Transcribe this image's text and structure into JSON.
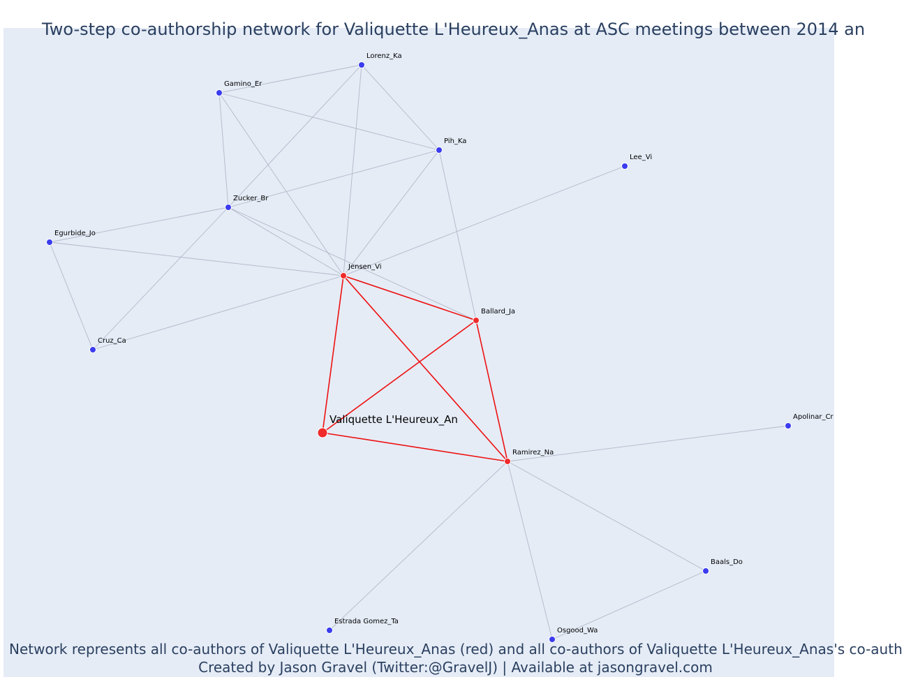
{
  "title": "Two-step co-authorship network for Valiquette L'Heureux_Anas at ASC meetings between 2014 an",
  "caption": {
    "line1": "Network represents all co-authors of Valiquette L'Heureux_Anas (red) and all co-authors of Valiquette L'Heureux_Anas's co-auth",
    "line2": "Created by Jason Gravel (Twitter:@GravelJ) | Available at jasongravel.com"
  },
  "colors": {
    "background": "#e5ecf6",
    "text": "#2a3f5f",
    "primary_node": "#ef2b2b",
    "secondary_node": "#3b3bef",
    "primary_edge": "#ee1111",
    "secondary_edge": "#b3b8c8"
  },
  "nodes": [
    {
      "id": "valiquette",
      "label": "Valiquette L'Heureux_An",
      "group": "focal"
    },
    {
      "id": "jensen",
      "label": "Jensen_Vi",
      "group": "primary"
    },
    {
      "id": "ballard",
      "label": "Ballard_Ja",
      "group": "primary"
    },
    {
      "id": "ramirez",
      "label": "Ramirez_Na",
      "group": "primary"
    },
    {
      "id": "lorenz",
      "label": "Lorenz_Ka",
      "group": "secondary"
    },
    {
      "id": "gamino",
      "label": "Gamino_Er",
      "group": "secondary"
    },
    {
      "id": "pih",
      "label": "Pih_Ka",
      "group": "secondary"
    },
    {
      "id": "lee",
      "label": "Lee_Vi",
      "group": "secondary"
    },
    {
      "id": "zucker",
      "label": "Zucker_Br",
      "group": "secondary"
    },
    {
      "id": "egurbide",
      "label": "Egurbide_Jo",
      "group": "secondary"
    },
    {
      "id": "cruz",
      "label": "Cruz_Ca",
      "group": "secondary"
    },
    {
      "id": "apolinar",
      "label": "Apolinar_Cr",
      "group": "secondary"
    },
    {
      "id": "baals",
      "label": "Baals_Do",
      "group": "secondary"
    },
    {
      "id": "estrada",
      "label": "Estrada Gomez_Ta",
      "group": "secondary"
    },
    {
      "id": "osgood",
      "label": "Osgood_Wa",
      "group": "secondary"
    }
  ],
  "edges": [
    {
      "source": "valiquette",
      "target": "jensen",
      "type": "primary"
    },
    {
      "source": "valiquette",
      "target": "ballard",
      "type": "primary"
    },
    {
      "source": "valiquette",
      "target": "ramirez",
      "type": "primary"
    },
    {
      "source": "jensen",
      "target": "ballard",
      "type": "primary"
    },
    {
      "source": "jensen",
      "target": "ramirez",
      "type": "primary"
    },
    {
      "source": "ballard",
      "target": "ramirez",
      "type": "primary"
    },
    {
      "source": "gamino",
      "target": "lorenz",
      "type": "secondary"
    },
    {
      "source": "gamino",
      "target": "pih",
      "type": "secondary"
    },
    {
      "source": "gamino",
      "target": "zucker",
      "type": "secondary"
    },
    {
      "source": "gamino",
      "target": "jensen",
      "type": "secondary"
    },
    {
      "source": "lorenz",
      "target": "pih",
      "type": "secondary"
    },
    {
      "source": "lorenz",
      "target": "zucker",
      "type": "secondary"
    },
    {
      "source": "lorenz",
      "target": "jensen",
      "type": "secondary"
    },
    {
      "source": "pih",
      "target": "zucker",
      "type": "secondary"
    },
    {
      "source": "pih",
      "target": "jensen",
      "type": "secondary"
    },
    {
      "source": "pih",
      "target": "ballard",
      "type": "secondary"
    },
    {
      "source": "lee",
      "target": "jensen",
      "type": "secondary"
    },
    {
      "source": "zucker",
      "target": "egurbide",
      "type": "secondary"
    },
    {
      "source": "zucker",
      "target": "jensen",
      "type": "secondary"
    },
    {
      "source": "zucker",
      "target": "ballard",
      "type": "secondary"
    },
    {
      "source": "zucker",
      "target": "cruz",
      "type": "secondary"
    },
    {
      "source": "egurbide",
      "target": "jensen",
      "type": "secondary"
    },
    {
      "source": "egurbide",
      "target": "cruz",
      "type": "secondary"
    },
    {
      "source": "cruz",
      "target": "jensen",
      "type": "secondary"
    },
    {
      "source": "apolinar",
      "target": "ramirez",
      "type": "secondary"
    },
    {
      "source": "baals",
      "target": "ramirez",
      "type": "secondary"
    },
    {
      "source": "baals",
      "target": "osgood",
      "type": "secondary"
    },
    {
      "source": "estrada",
      "target": "ramirez",
      "type": "secondary"
    },
    {
      "source": "osgood",
      "target": "ramirez",
      "type": "secondary"
    }
  ]
}
